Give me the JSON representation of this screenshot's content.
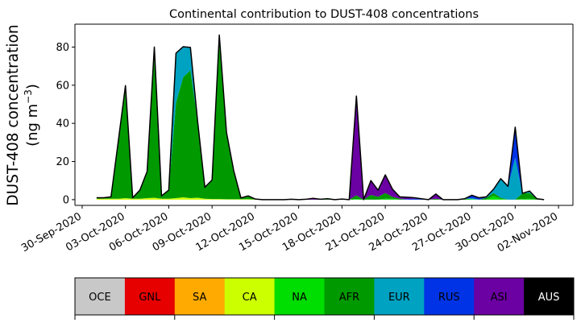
{
  "chart_data": {
    "type": "area",
    "stacked": true,
    "title": "Continental contribution to DUST-408 concentrations",
    "ylabel_line1": "DUST-408 concentration",
    "ylabel_line2": "(ng m",
    "ylabel_unit_sup": "−3",
    "ylabel_close": ")",
    "xlabel": "",
    "ylim": [
      -3,
      92
    ],
    "yticks": [
      0,
      20,
      40,
      60,
      80
    ],
    "xlim": [
      "2020-09-29T12:00",
      "2020-11-03T00:00"
    ],
    "xticks": [
      "30-Sep-2020",
      "03-Oct-2020",
      "06-Oct-2020",
      "09-Oct-2020",
      "12-Oct-2020",
      "15-Oct-2020",
      "18-Oct-2020",
      "21-Oct-2020",
      "24-Oct-2020",
      "27-Oct-2020",
      "30-Oct-2020",
      "02-Nov-2020"
    ],
    "grid": false,
    "legend": "colorbar below plot",
    "x": [
      "2020-10-01T00:00",
      "2020-10-01T12:00",
      "2020-10-02T00:00",
      "2020-10-02T12:00",
      "2020-10-03T00:00",
      "2020-10-03T12:00",
      "2020-10-04T00:00",
      "2020-10-04T12:00",
      "2020-10-05T00:00",
      "2020-10-05T12:00",
      "2020-10-06T00:00",
      "2020-10-06T12:00",
      "2020-10-07T00:00",
      "2020-10-07T12:00",
      "2020-10-08T00:00",
      "2020-10-08T12:00",
      "2020-10-09T00:00",
      "2020-10-09T12:00",
      "2020-10-10T00:00",
      "2020-10-10T12:00",
      "2020-10-11T00:00",
      "2020-10-11T12:00",
      "2020-10-12T00:00",
      "2020-10-12T12:00",
      "2020-10-13T00:00",
      "2020-10-13T12:00",
      "2020-10-14T00:00",
      "2020-10-14T12:00",
      "2020-10-15T00:00",
      "2020-10-15T12:00",
      "2020-10-16T00:00",
      "2020-10-16T12:00",
      "2020-10-17T00:00",
      "2020-10-17T12:00",
      "2020-10-18T00:00",
      "2020-10-18T12:00",
      "2020-10-19T00:00",
      "2020-10-19T12:00",
      "2020-10-20T00:00",
      "2020-10-20T12:00",
      "2020-10-21T00:00",
      "2020-10-21T12:00",
      "2020-10-22T00:00",
      "2020-10-22T12:00",
      "2020-10-23T00:00",
      "2020-10-23T12:00",
      "2020-10-24T00:00",
      "2020-10-24T12:00",
      "2020-10-25T00:00",
      "2020-10-25T12:00",
      "2020-10-26T00:00",
      "2020-10-26T12:00",
      "2020-10-27T00:00",
      "2020-10-27T12:00",
      "2020-10-28T00:00",
      "2020-10-28T12:00",
      "2020-10-29T00:00",
      "2020-10-29T12:00",
      "2020-10-30T00:00",
      "2020-10-30T12:00",
      "2020-10-31T00:00",
      "2020-10-31T12:00",
      "2020-11-01T00:00"
    ],
    "series": [
      {
        "name": "OCE",
        "color": "#c8c8c8",
        "values": [
          0,
          0,
          0,
          0,
          0,
          0,
          0,
          0,
          0,
          0,
          0,
          0,
          0,
          0,
          0,
          0,
          0,
          0,
          0,
          0,
          0,
          0,
          0,
          0,
          0,
          0,
          0,
          0,
          0,
          0,
          0,
          0,
          0,
          0,
          0,
          0,
          0,
          0,
          0,
          0,
          0,
          0,
          0,
          0,
          0,
          0,
          0,
          0,
          0,
          0,
          0,
          0,
          0,
          0,
          0,
          0,
          0,
          0,
          0,
          0,
          0,
          0,
          0
        ]
      },
      {
        "name": "GNL",
        "color": "#e60000",
        "values": [
          0,
          0,
          0,
          0,
          0,
          0,
          0,
          0,
          0,
          0,
          0,
          0,
          0,
          0,
          0,
          0,
          0,
          0,
          0,
          0,
          0,
          0,
          0,
          0,
          0,
          0,
          0,
          0,
          0,
          0,
          0,
          0,
          0,
          0,
          0,
          0,
          0,
          0,
          0,
          0,
          0,
          0,
          0,
          0,
          0,
          0,
          0,
          0,
          0,
          0,
          0,
          0,
          0,
          0,
          0,
          0,
          0,
          0,
          0,
          0,
          0,
          0,
          0
        ]
      },
      {
        "name": "SA",
        "color": "#ffaa00",
        "values": [
          0,
          0,
          0,
          0,
          0,
          0,
          0,
          0,
          0,
          0,
          0,
          0,
          0,
          0,
          0,
          0,
          0,
          0,
          0,
          0,
          0,
          0,
          0,
          0,
          0,
          0,
          0,
          0,
          0,
          0,
          0,
          0,
          0,
          0,
          0,
          0,
          0,
          0,
          0,
          0,
          0,
          0,
          0,
          0,
          0,
          0,
          0,
          0,
          0,
          0,
          0,
          0,
          0,
          0,
          0,
          0,
          0,
          0,
          0,
          0,
          0,
          0,
          0
        ]
      },
      {
        "name": "CA",
        "color": "#ccff00",
        "values": [
          0.5,
          0.5,
          0.5,
          0.5,
          0.8,
          0.5,
          0.5,
          0.8,
          1,
          0.5,
          0.5,
          0.8,
          1.2,
          0.8,
          1,
          0.5,
          0.3,
          0.3,
          0.2,
          0.2,
          0.2,
          0.2,
          0.1,
          0,
          0,
          0,
          0,
          0,
          0,
          0,
          0,
          0,
          0,
          0,
          0,
          0,
          0,
          0,
          0,
          0,
          0,
          0,
          0,
          0,
          0,
          0,
          0,
          0,
          0,
          0,
          0,
          0,
          0,
          0,
          0,
          0,
          0,
          0,
          0,
          0,
          0,
          0,
          0
        ]
      },
      {
        "name": "NA",
        "color": "#00dd00",
        "values": [
          0,
          0,
          0,
          0,
          0,
          0,
          0,
          0,
          0,
          0,
          0,
          0,
          0,
          0,
          0,
          0,
          0,
          0,
          0,
          0,
          0,
          0,
          0,
          0,
          0,
          0,
          0,
          0,
          0,
          0,
          0,
          0,
          0,
          0,
          0,
          0,
          0.3,
          0,
          0,
          0,
          0.5,
          0.5,
          0,
          0,
          0,
          0,
          0,
          0,
          0,
          0,
          0,
          0,
          0.3,
          0,
          0,
          2,
          0.5,
          0,
          0,
          0.3,
          0.5,
          0,
          0
        ]
      },
      {
        "name": "AFR",
        "color": "#009a00",
        "values": [
          0.5,
          0.5,
          1,
          30,
          59,
          0.5,
          4.5,
          14,
          79,
          1.5,
          4.5,
          50,
          63,
          67,
          40,
          6,
          10,
          86,
          35,
          15,
          0.7,
          1.8,
          0.2,
          0,
          0,
          0,
          0,
          0.2,
          0,
          0,
          0,
          0,
          0.5,
          0,
          0.3,
          0,
          2,
          0,
          2.5,
          1.5,
          3,
          1,
          0.5,
          0,
          0,
          0,
          0,
          0.5,
          0,
          0,
          0,
          0.5,
          0,
          0,
          1,
          1.5,
          0.5,
          0,
          0,
          3,
          3,
          0.5,
          0
        ]
      },
      {
        "name": "EUR",
        "color": "#00a2c2",
        "values": [
          0,
          0,
          0,
          0,
          0,
          0,
          0,
          0,
          0,
          0,
          0,
          26,
          16,
          12,
          0,
          0,
          0,
          0,
          0,
          0,
          0,
          0,
          0,
          0,
          0,
          0,
          0,
          0,
          0,
          0,
          0,
          0,
          0,
          0,
          0,
          0,
          0,
          0,
          0,
          0,
          0,
          0,
          0,
          0,
          0,
          0,
          0,
          0,
          0,
          0,
          0,
          0,
          0.5,
          0,
          0,
          2,
          10,
          7,
          22,
          0,
          1,
          0,
          0
        ]
      },
      {
        "name": "RUS",
        "color": "#0033e6",
        "values": [
          0,
          0,
          0,
          0,
          0,
          0,
          0,
          0,
          0,
          0,
          0,
          0,
          0,
          0,
          0,
          0,
          0,
          0,
          0,
          0,
          0,
          0,
          0,
          0,
          0,
          0,
          0,
          0,
          0,
          0,
          0,
          0,
          0,
          0,
          0,
          0,
          0,
          0,
          0,
          0,
          0,
          0,
          0,
          0.3,
          0.5,
          0.5,
          0,
          0,
          0,
          0,
          0,
          0,
          1.5,
          1,
          0.5,
          0,
          0,
          0,
          16,
          0,
          0,
          0,
          0
        ]
      },
      {
        "name": "ASI",
        "color": "#6b00a3",
        "values": [
          0,
          0,
          0,
          0,
          0,
          0,
          0,
          0,
          0,
          0,
          0,
          0,
          0,
          0,
          0,
          0,
          0,
          0,
          0,
          0,
          0,
          0,
          0,
          0,
          0,
          0,
          0,
          0,
          0,
          0.2,
          0.7,
          0.2,
          0,
          0,
          0,
          0,
          52,
          0,
          7.5,
          3.5,
          9.5,
          4,
          1,
          1,
          0.5,
          0,
          0,
          2.5,
          0,
          0,
          0,
          0,
          0,
          0,
          0,
          0,
          0,
          0,
          0,
          0,
          0,
          0,
          0
        ]
      },
      {
        "name": "AUS",
        "color": "#000000",
        "values": [
          0,
          0,
          0,
          0,
          0,
          0,
          0,
          0,
          0,
          0,
          0,
          0,
          0,
          0,
          0,
          0,
          0,
          0,
          0,
          0,
          0,
          0,
          0,
          0,
          0,
          0,
          0,
          0,
          0,
          0,
          0,
          0,
          0,
          0,
          0,
          0,
          0,
          0,
          0,
          0,
          0,
          0,
          0,
          0,
          0,
          0,
          0,
          0,
          0,
          0,
          0,
          0,
          0,
          0,
          0,
          0,
          0,
          0,
          0,
          0,
          0,
          0,
          0
        ]
      }
    ]
  }
}
